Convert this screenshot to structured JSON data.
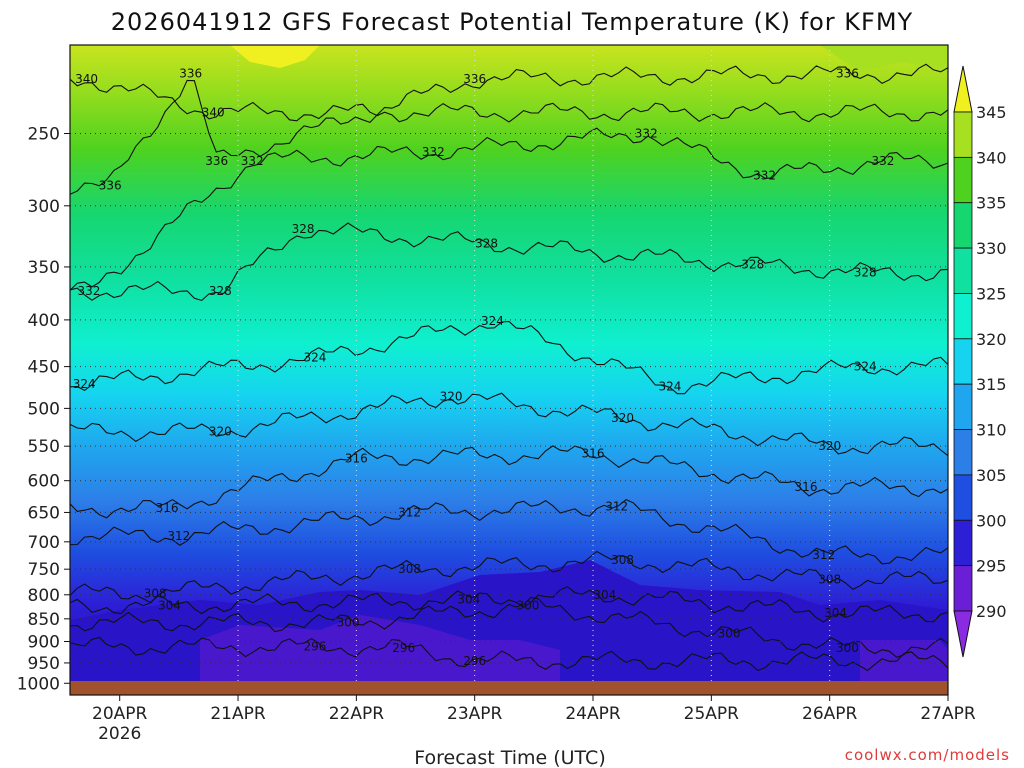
{
  "page": {
    "title": "2026041912 GFS Forecast Potential Temperature (K) for KFMY",
    "credit": "coolwx.com/models"
  },
  "chart_data": {
    "type": "heatmap",
    "title": "2026041912 GFS Forecast Potential Temperature (K) for KFMY",
    "xlabel": "Forecast Time (UTC)",
    "ylabel": "",
    "x_ticks": [
      "20APR",
      "21APR",
      "22APR",
      "23APR",
      "24APR",
      "25APR",
      "26APR",
      "27APR"
    ],
    "x_tick_sub": "2026",
    "xlim_days": [
      19.58,
      27.0
    ],
    "y_ticks": [
      250,
      300,
      350,
      400,
      450,
      500,
      550,
      600,
      650,
      700,
      750,
      800,
      850,
      900,
      950,
      1000
    ],
    "ylim": [
      1030,
      200
    ],
    "y_scale": "log",
    "colorbar_levels": [
      290,
      295,
      300,
      305,
      310,
      315,
      320,
      325,
      330,
      335,
      340,
      345
    ],
    "colorbar_colors": [
      "#8a2be2",
      "#6a1fd6",
      "#2d1fd6",
      "#1e4fe0",
      "#2d7fe8",
      "#1fa6ef",
      "#16d3f0",
      "#0ff0d0",
      "#10e0a0",
      "#16d670",
      "#4fd21f",
      "#a6e020",
      "#f0f020"
    ],
    "contour_labels": [
      {
        "value": "340",
        "day": 19.72,
        "p": 218
      },
      {
        "value": "336",
        "day": 20.6,
        "p": 215
      },
      {
        "value": "336",
        "day": 23.0,
        "p": 218
      },
      {
        "value": "336",
        "day": 26.15,
        "p": 215
      },
      {
        "value": "340",
        "day": 20.79,
        "p": 237
      },
      {
        "value": "336",
        "day": 20.82,
        "p": 268
      },
      {
        "value": "332",
        "day": 21.12,
        "p": 268
      },
      {
        "value": "336",
        "day": 19.92,
        "p": 285
      },
      {
        "value": "332",
        "day": 22.65,
        "p": 262
      },
      {
        "value": "332",
        "day": 24.45,
        "p": 250
      },
      {
        "value": "332",
        "day": 25.45,
        "p": 278
      },
      {
        "value": "332",
        "day": 26.45,
        "p": 268
      },
      {
        "value": "328",
        "day": 21.55,
        "p": 318
      },
      {
        "value": "328",
        "day": 23.1,
        "p": 330
      },
      {
        "value": "328",
        "day": 25.35,
        "p": 348
      },
      {
        "value": "328",
        "day": 26.3,
        "p": 355
      },
      {
        "value": "332",
        "day": 19.74,
        "p": 372
      },
      {
        "value": "328",
        "day": 20.85,
        "p": 372
      },
      {
        "value": "324",
        "day": 23.15,
        "p": 401
      },
      {
        "value": "324",
        "day": 21.65,
        "p": 440
      },
      {
        "value": "324",
        "day": 24.65,
        "p": 473
      },
      {
        "value": "324",
        "day": 26.3,
        "p": 450
      },
      {
        "value": "324",
        "day": 19.7,
        "p": 470
      },
      {
        "value": "320",
        "day": 22.8,
        "p": 485
      },
      {
        "value": "320",
        "day": 24.25,
        "p": 512
      },
      {
        "value": "320",
        "day": 20.85,
        "p": 530
      },
      {
        "value": "320",
        "day": 26.0,
        "p": 550
      },
      {
        "value": "316",
        "day": 22.0,
        "p": 567
      },
      {
        "value": "316",
        "day": 24.0,
        "p": 560
      },
      {
        "value": "316",
        "day": 25.8,
        "p": 610
      },
      {
        "value": "316",
        "day": 20.4,
        "p": 643
      },
      {
        "value": "312",
        "day": 22.45,
        "p": 650
      },
      {
        "value": "312",
        "day": 24.2,
        "p": 640
      },
      {
        "value": "312",
        "day": 20.5,
        "p": 690
      },
      {
        "value": "312",
        "day": 25.95,
        "p": 724
      },
      {
        "value": "308",
        "day": 22.45,
        "p": 750
      },
      {
        "value": "308",
        "day": 24.25,
        "p": 733
      },
      {
        "value": "308",
        "day": 26.0,
        "p": 770
      },
      {
        "value": "308",
        "day": 20.3,
        "p": 797
      },
      {
        "value": "304",
        "day": 20.42,
        "p": 822
      },
      {
        "value": "304",
        "day": 22.95,
        "p": 810
      },
      {
        "value": "304",
        "day": 24.1,
        "p": 800
      },
      {
        "value": "304",
        "day": 26.05,
        "p": 838
      },
      {
        "value": "300",
        "day": 21.93,
        "p": 858
      },
      {
        "value": "300",
        "day": 23.45,
        "p": 822
      },
      {
        "value": "300",
        "day": 25.15,
        "p": 882
      },
      {
        "value": "300",
        "day": 26.15,
        "p": 915
      },
      {
        "value": "296",
        "day": 21.65,
        "p": 912
      },
      {
        "value": "296",
        "day": 22.4,
        "p": 915
      },
      {
        "value": "296",
        "day": 23.0,
        "p": 945
      }
    ]
  }
}
